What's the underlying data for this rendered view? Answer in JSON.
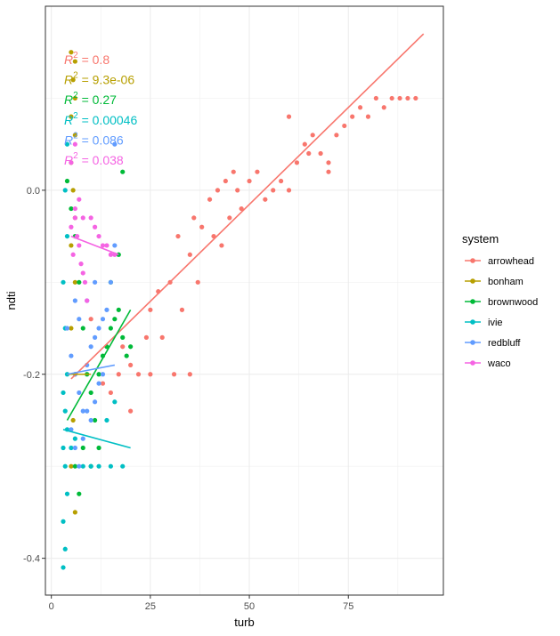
{
  "chart_data": {
    "type": "scatter",
    "xlabel": "turb",
    "ylabel": "ndti",
    "xlim": [
      -1.5,
      99
    ],
    "ylim": [
      -0.44,
      0.2
    ],
    "x_ticks": [
      0,
      25,
      50,
      75
    ],
    "x_tick_labels": [
      "0",
      "25",
      "50",
      "75"
    ],
    "y_ticks": [
      -0.4,
      -0.2,
      0.0
    ],
    "y_tick_labels": [
      "-0.4",
      "-0.2",
      "0.0"
    ],
    "grid": true,
    "legend": {
      "title": "system",
      "placement": "right"
    },
    "series": [
      {
        "name": "arrowhead",
        "color": "#F8766D",
        "r2_value": " = 0.8",
        "fit": {
          "x": [
            5,
            94
          ],
          "y": [
            -0.205,
            0.17
          ]
        },
        "points": [
          [
            10,
            -0.14
          ],
          [
            13,
            -0.21
          ],
          [
            15,
            -0.22
          ],
          [
            17,
            -0.2
          ],
          [
            20,
            -0.24
          ],
          [
            22,
            -0.2
          ],
          [
            24,
            -0.16
          ],
          [
            25,
            -0.13
          ],
          [
            27,
            -0.11
          ],
          [
            28,
            -0.16
          ],
          [
            30,
            -0.1
          ],
          [
            32,
            -0.05
          ],
          [
            33,
            -0.13
          ],
          [
            35,
            -0.07
          ],
          [
            36,
            -0.03
          ],
          [
            37,
            -0.1
          ],
          [
            38,
            -0.04
          ],
          [
            40,
            -0.01
          ],
          [
            41,
            -0.05
          ],
          [
            42,
            0.0
          ],
          [
            43,
            -0.06
          ],
          [
            44,
            0.01
          ],
          [
            45,
            -0.03
          ],
          [
            46,
            0.02
          ],
          [
            47,
            0.0
          ],
          [
            48,
            -0.02
          ],
          [
            50,
            0.01
          ],
          [
            52,
            0.02
          ],
          [
            54,
            -0.01
          ],
          [
            56,
            0.0
          ],
          [
            58,
            0.01
          ],
          [
            60,
            0.0
          ],
          [
            62,
            0.03
          ],
          [
            64,
            0.05
          ],
          [
            66,
            0.06
          ],
          [
            68,
            0.04
          ],
          [
            70,
            0.03
          ],
          [
            72,
            0.06
          ],
          [
            74,
            0.07
          ],
          [
            76,
            0.08
          ],
          [
            78,
            0.09
          ],
          [
            80,
            0.08
          ],
          [
            82,
            0.1
          ],
          [
            84,
            0.09
          ],
          [
            86,
            0.1
          ],
          [
            88,
            0.1
          ],
          [
            90,
            0.1
          ],
          [
            92,
            0.1
          ],
          [
            60,
            0.08
          ],
          [
            65,
            0.04
          ],
          [
            70,
            0.02
          ],
          [
            31,
            -0.2
          ],
          [
            35,
            -0.2
          ],
          [
            25,
            -0.2
          ],
          [
            20,
            -0.19
          ],
          [
            18,
            -0.17
          ]
        ]
      },
      {
        "name": "bonham",
        "color": "#B79F00",
        "r2_value": " = 9.3e-06",
        "fit": {
          "x": [
            4,
            10
          ],
          "y": [
            -0.2,
            -0.2
          ]
        },
        "points": [
          [
            5,
            0.15
          ],
          [
            6,
            0.14
          ],
          [
            5.5,
            0.12
          ],
          [
            6,
            0.1
          ],
          [
            5,
            0.08
          ],
          [
            6,
            0.06
          ],
          [
            5,
            0.03
          ],
          [
            5.5,
            0.0
          ],
          [
            6,
            -0.03
          ],
          [
            5,
            -0.06
          ],
          [
            6,
            -0.1
          ],
          [
            5,
            -0.15
          ],
          [
            6,
            -0.2
          ],
          [
            5.5,
            -0.25
          ],
          [
            5,
            -0.3
          ],
          [
            6,
            -0.35
          ]
        ]
      },
      {
        "name": "brownwood",
        "color": "#00BA38",
        "r2_value": " = 0.27",
        "fit": {
          "x": [
            4,
            20
          ],
          "y": [
            -0.25,
            -0.13
          ]
        },
        "points": [
          [
            4,
            0.01
          ],
          [
            5,
            -0.02
          ],
          [
            6,
            -0.05
          ],
          [
            7,
            -0.1
          ],
          [
            8,
            -0.15
          ],
          [
            9,
            -0.2
          ],
          [
            10,
            -0.22
          ],
          [
            11,
            -0.25
          ],
          [
            12,
            -0.2
          ],
          [
            13,
            -0.18
          ],
          [
            14,
            -0.17
          ],
          [
            15,
            -0.15
          ],
          [
            16,
            -0.14
          ],
          [
            17,
            -0.13
          ],
          [
            18,
            -0.16
          ],
          [
            19,
            -0.18
          ],
          [
            20,
            -0.17
          ],
          [
            6,
            -0.3
          ],
          [
            7,
            -0.33
          ],
          [
            8,
            -0.28
          ],
          [
            12,
            -0.28
          ],
          [
            15,
            -0.1
          ],
          [
            17,
            -0.07
          ],
          [
            18,
            0.02
          ],
          [
            10,
            -0.3
          ]
        ]
      },
      {
        "name": "ivie",
        "color": "#00BFC4",
        "r2_value": " = 0.00046",
        "fit": {
          "x": [
            3,
            20
          ],
          "y": [
            -0.26,
            -0.28
          ]
        },
        "points": [
          [
            3,
            -0.41
          ],
          [
            3.5,
            -0.39
          ],
          [
            3,
            -0.36
          ],
          [
            4,
            -0.33
          ],
          [
            3.5,
            -0.3
          ],
          [
            3,
            -0.28
          ],
          [
            4,
            -0.26
          ],
          [
            3.5,
            -0.24
          ],
          [
            3,
            -0.22
          ],
          [
            4,
            -0.2
          ],
          [
            3.5,
            -0.15
          ],
          [
            3,
            -0.1
          ],
          [
            4,
            -0.05
          ],
          [
            3.5,
            0.0
          ],
          [
            4,
            0.05
          ],
          [
            5,
            -0.28
          ],
          [
            6,
            -0.27
          ],
          [
            8,
            -0.3
          ],
          [
            10,
            -0.3
          ],
          [
            12,
            -0.3
          ],
          [
            15,
            -0.3
          ],
          [
            18,
            -0.3
          ],
          [
            14,
            -0.25
          ],
          [
            16,
            -0.23
          ]
        ]
      },
      {
        "name": "redbluff",
        "color": "#619CFF",
        "r2_value": " = 0.086",
        "fit": {
          "x": [
            4,
            16
          ],
          "y": [
            -0.2,
            -0.19
          ]
        },
        "points": [
          [
            4,
            -0.15
          ],
          [
            5,
            -0.18
          ],
          [
            6,
            -0.2
          ],
          [
            7,
            -0.22
          ],
          [
            8,
            -0.24
          ],
          [
            9,
            -0.19
          ],
          [
            10,
            -0.17
          ],
          [
            11,
            -0.16
          ],
          [
            12,
            -0.15
          ],
          [
            13,
            -0.14
          ],
          [
            14,
            -0.13
          ],
          [
            15,
            -0.1
          ],
          [
            16,
            -0.06
          ],
          [
            5,
            -0.26
          ],
          [
            6,
            -0.28
          ],
          [
            7,
            -0.3
          ],
          [
            8,
            -0.27
          ],
          [
            9,
            -0.24
          ],
          [
            10,
            -0.25
          ],
          [
            11,
            -0.23
          ],
          [
            12,
            -0.21
          ],
          [
            13,
            -0.2
          ],
          [
            6,
            -0.12
          ],
          [
            7,
            -0.14
          ],
          [
            9,
            -0.12
          ],
          [
            11,
            -0.1
          ],
          [
            16,
            0.05
          ]
        ]
      },
      {
        "name": "waco",
        "color": "#F564E3",
        "r2_value": " = 0.038",
        "fit": {
          "x": [
            5,
            17
          ],
          "y": [
            -0.05,
            -0.07
          ]
        },
        "points": [
          [
            5,
            -0.04
          ],
          [
            5.5,
            -0.07
          ],
          [
            6,
            -0.03
          ],
          [
            6.5,
            -0.05
          ],
          [
            7,
            -0.06
          ],
          [
            7.5,
            -0.08
          ],
          [
            8,
            -0.09
          ],
          [
            8.5,
            -0.1
          ],
          [
            9,
            -0.12
          ],
          [
            10,
            -0.03
          ],
          [
            11,
            -0.04
          ],
          [
            12,
            -0.05
          ],
          [
            13,
            -0.06
          ],
          [
            14,
            -0.06
          ],
          [
            15,
            -0.07
          ],
          [
            16,
            -0.07
          ],
          [
            6,
            -0.02
          ],
          [
            7,
            -0.01
          ],
          [
            8,
            -0.03
          ],
          [
            5,
            0.03
          ],
          [
            6,
            0.05
          ]
        ]
      }
    ]
  }
}
